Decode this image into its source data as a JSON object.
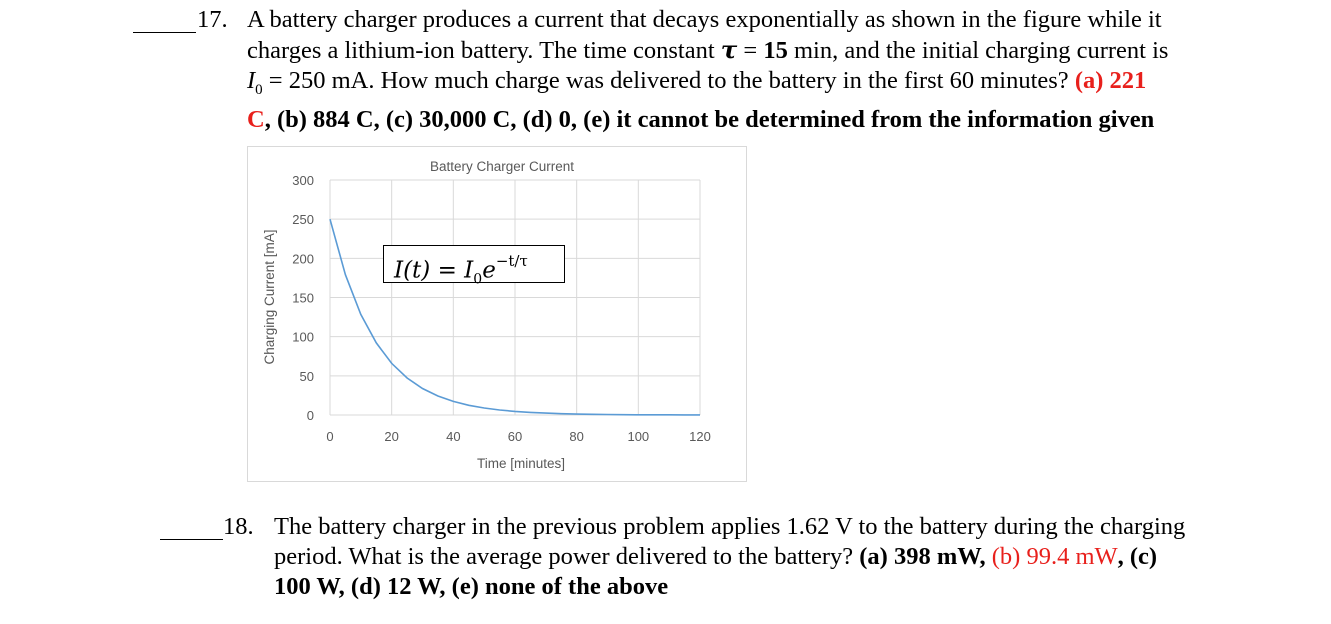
{
  "q17": {
    "blank": "",
    "number": "17.",
    "line1": "A battery charger produces a current that decays exponentially as shown in the figure while it",
    "line2_a": "charges a lithium-ion battery. The time constant ",
    "tau_symbol": "τ",
    "equals": " = ",
    "tau_value": "15",
    "line2_b": " min, and the initial charging current is",
    "i0_label": "I",
    "i0_sub": "0",
    "line3_a": " = 250 mA.  How much charge was delivered to the battery in the first 60 minutes? ",
    "ans_a_1": "(a) 221",
    "ans_a_2": "C",
    "line4_rest": ", (b) 884 C, (c) 30,000 C, (d) 0, (e) it cannot be determined from the information given"
  },
  "formula": {
    "lhs": "I(t) = I",
    "sub": "0",
    "base": "e",
    "exp": "−t/τ"
  },
  "chart_data": {
    "type": "line",
    "title": "Battery Charger Current",
    "xlabel": "Time [minutes]",
    "ylabel": "Charging Current [mA]",
    "xlim": [
      0,
      120
    ],
    "ylim": [
      0,
      300
    ],
    "xticks": [
      0,
      20,
      40,
      60,
      80,
      100,
      120
    ],
    "yticks": [
      0,
      50,
      100,
      150,
      200,
      250,
      300
    ],
    "grid": true,
    "series": [
      {
        "color": "#5b9bd5",
        "x": [
          0,
          5,
          10,
          15,
          20,
          25,
          30,
          35,
          40,
          45,
          50,
          55,
          60,
          65,
          70,
          75,
          80,
          85,
          90,
          95,
          100,
          105,
          110,
          115,
          120
        ],
        "y": [
          250,
          179.1,
          128.4,
          92.0,
          65.9,
          47.2,
          33.8,
          24.2,
          17.4,
          12.4,
          8.9,
          6.4,
          4.6,
          3.3,
          2.4,
          1.7,
          1.2,
          0.9,
          0.6,
          0.4,
          0.3,
          0.2,
          0.2,
          0.1,
          0.1
        ]
      }
    ]
  },
  "q18": {
    "blank": "",
    "number": "18.",
    "line1": "The battery charger in the previous problem applies 1.62 V to the battery during the charging",
    "line2_a": "period.  What is the average power delivered to the battery?  ",
    "ans_a": "(a) 398 mW, ",
    "ans_b": "(b) 99.4 mW",
    "line2_c": ", (c)",
    "line3": "100 W, (d) 12 W, (e) none of the above"
  }
}
